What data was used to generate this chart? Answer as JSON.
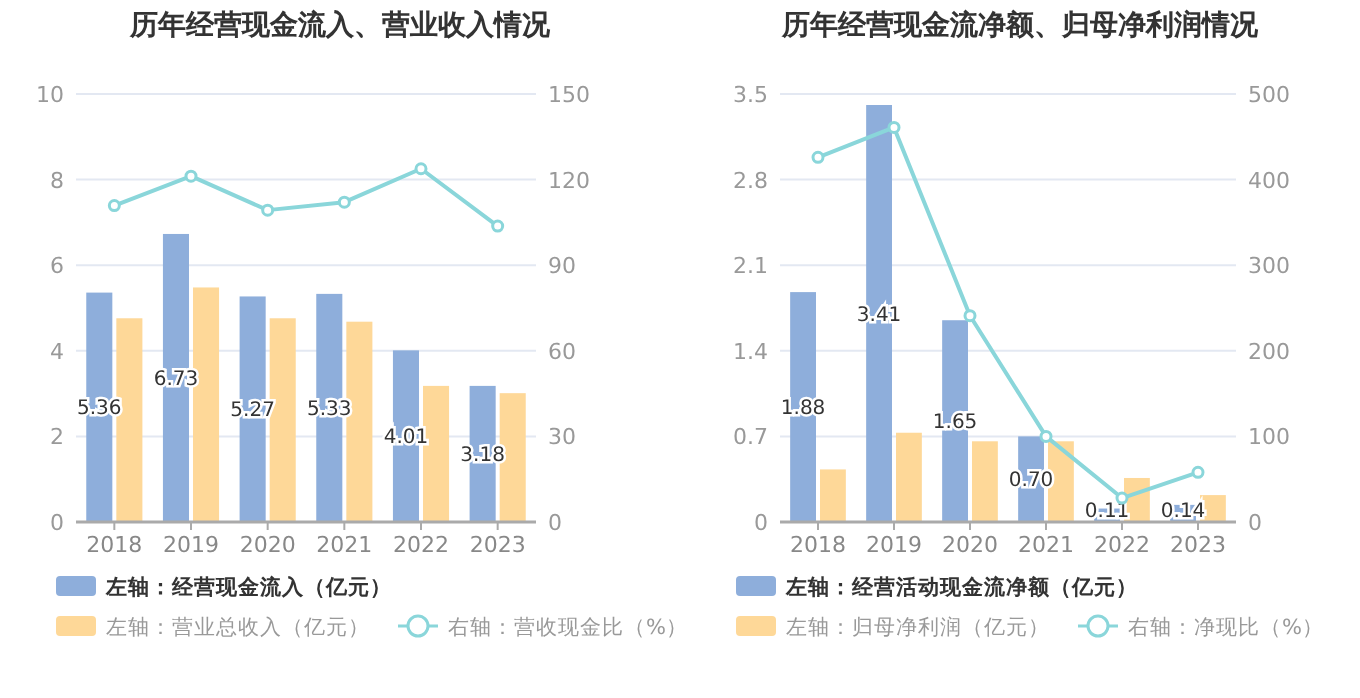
{
  "chart_data": [
    {
      "type": "bar",
      "title": "历年经营现金流入、营业收入情况",
      "categories": [
        "2018",
        "2019",
        "2020",
        "2021",
        "2022",
        "2023"
      ],
      "series": [
        {
          "name": "左轴：经营现金流入（亿元）",
          "color": "#8eaedb",
          "values": [
            5.36,
            6.73,
            5.27,
            5.33,
            4.01,
            3.18
          ],
          "value_labels": [
            "5.36",
            "6.73",
            "5.27",
            "5.33",
            "4.01",
            "3.18"
          ]
        },
        {
          "name": "左轴：营业总收入（亿元）",
          "color": "#fed898",
          "values": [
            4.76,
            5.48,
            4.76,
            4.68,
            3.18,
            3.01
          ]
        },
        {
          "name": "右轴：营收现金比（%）",
          "color": "#8ad6da",
          "type": "line",
          "axis": "y2",
          "marker": "circle",
          "values": [
            110.9,
            121.2,
            109.3,
            112.1,
            123.8,
            103.7
          ]
        }
      ],
      "ylim": [
        0,
        10
      ],
      "yticks": [
        0,
        2,
        4,
        6,
        8,
        10
      ],
      "y2lim": [
        0,
        150
      ],
      "y2ticks": [
        0,
        30,
        60,
        90,
        120,
        150
      ],
      "grid": "y",
      "legend": "bottom"
    },
    {
      "type": "bar",
      "title": "历年经营现金流净额、归母净利润情况",
      "categories": [
        "2018",
        "2019",
        "2020",
        "2021",
        "2022",
        "2023"
      ],
      "series": [
        {
          "name": "左轴：经营活动现金流净额（亿元）",
          "color": "#8eaedb",
          "values": [
            1.88,
            3.41,
            1.65,
            0.7,
            0.11,
            0.14
          ],
          "value_labels": [
            "1.88",
            "3.41",
            "1.65",
            "0.70",
            "0.11",
            "0.14"
          ]
        },
        {
          "name": "左轴：归母净利润（亿元）",
          "color": "#fed898",
          "values": [
            0.43,
            0.73,
            0.66,
            0.66,
            0.36,
            0.22
          ]
        },
        {
          "name": "右轴：净现比（%）",
          "color": "#8ad6da",
          "type": "line",
          "axis": "y2",
          "marker": "circle",
          "values": [
            426,
            461,
            241,
            100,
            28,
            58
          ]
        }
      ],
      "ylim": [
        0,
        3.5
      ],
      "yticks": [
        0,
        0.7,
        1.4,
        2.1,
        2.8,
        3.5
      ],
      "y2lim": [
        0,
        500
      ],
      "y2ticks": [
        0,
        100,
        200,
        300,
        400,
        500
      ],
      "grid": "y",
      "legend": "bottom"
    }
  ]
}
